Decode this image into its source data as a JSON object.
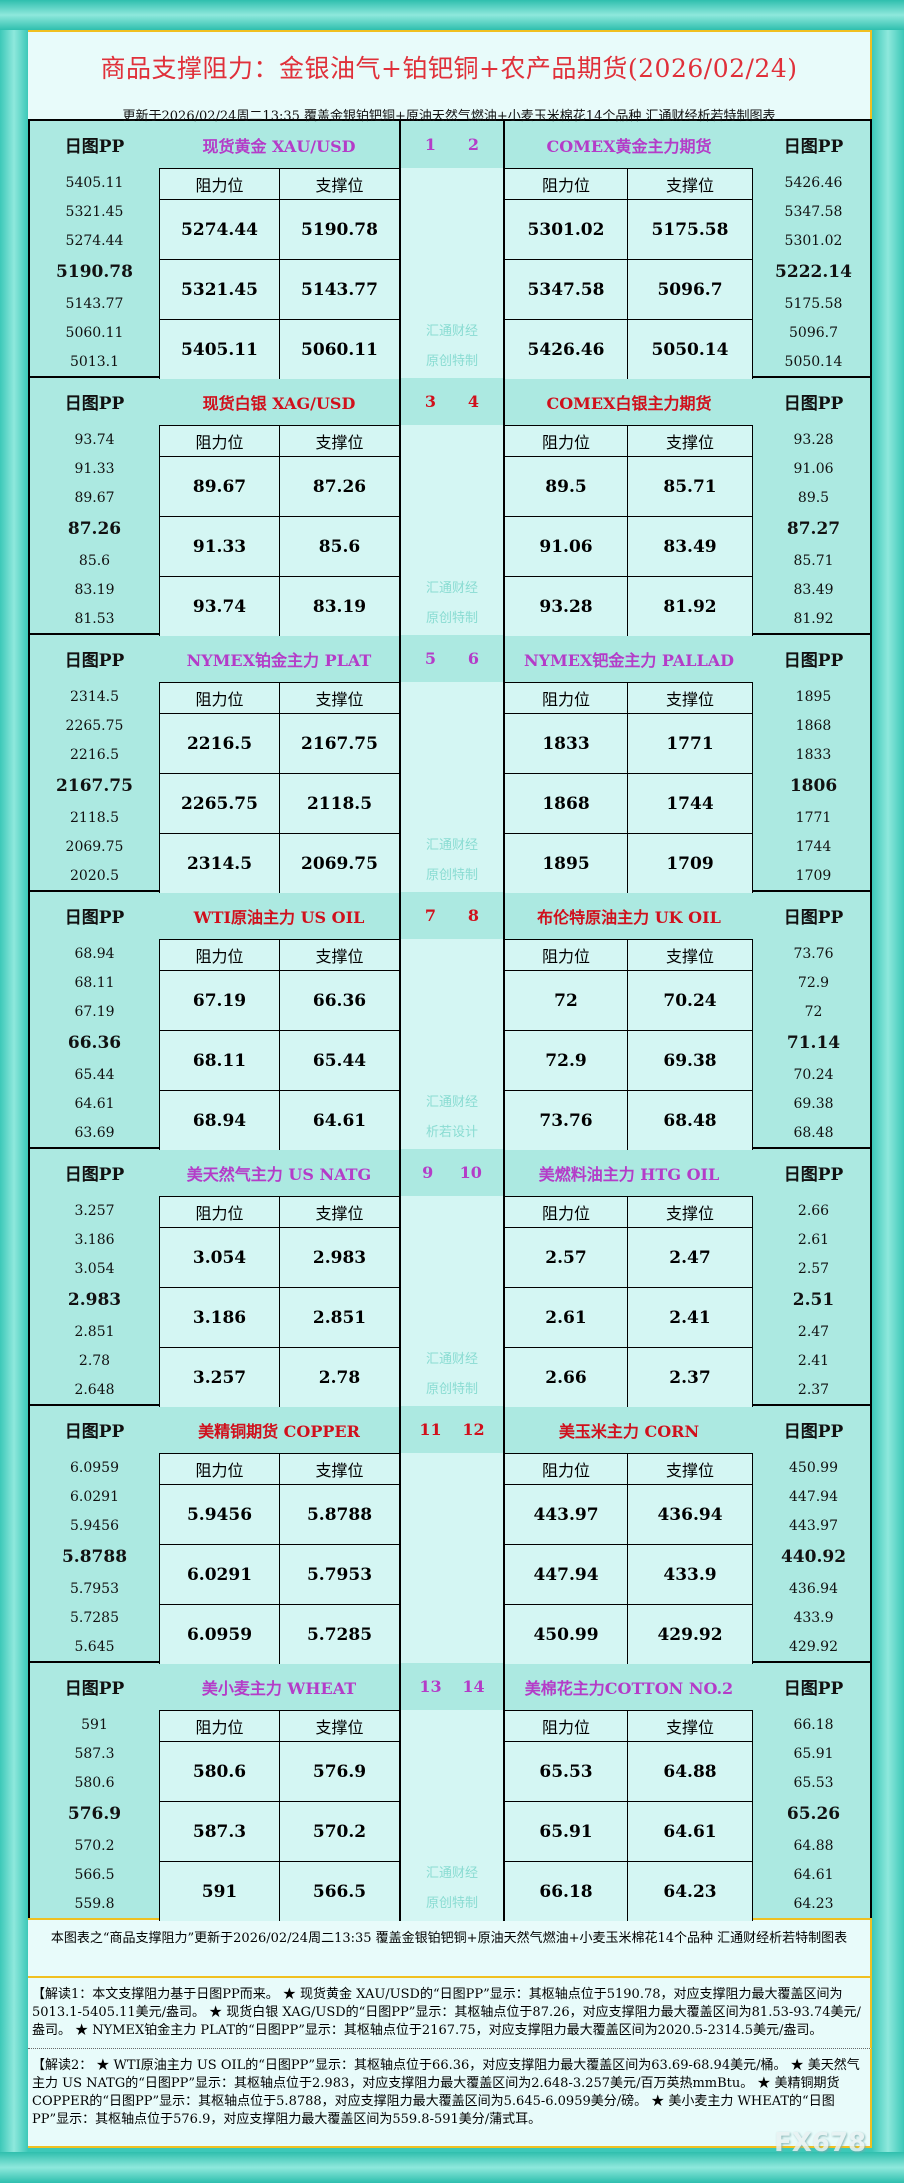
{
  "header": {
    "title": "商品支撑阻力：金银油气+铂钯铜+农产品期货(2026/02/24)",
    "subtitle": "更新于2026/02/24周二13:35  覆盖金银铂钯铜+原油天然气燃油+小麦玉米棉花14个品种  汇通财经析若特制图表"
  },
  "labels": {
    "pp": "日图PP",
    "resistance": "阻力位",
    "support": "支撑位"
  },
  "colors": {
    "purple": "#b43cc8",
    "red": "#d0101c"
  },
  "blocks": [
    {
      "nums": [
        "1",
        "2"
      ],
      "color": "purple",
      "watermark": [
        "汇通财经",
        "原创特制"
      ],
      "left": {
        "name": "现货黄金 XAU/USD",
        "pp": [
          "5405.11",
          "5321.45",
          "5274.44",
          "5190.78",
          "5143.77",
          "5060.11",
          "5013.1"
        ],
        "rows": [
          [
            "5274.44",
            "5190.78"
          ],
          [
            "5321.45",
            "5143.77"
          ],
          [
            "5405.11",
            "5060.11"
          ]
        ]
      },
      "right": {
        "name": "COMEX黄金主力期货",
        "pp": [
          "5426.46",
          "5347.58",
          "5301.02",
          "5222.14",
          "5175.58",
          "5096.7",
          "5050.14"
        ],
        "rows": [
          [
            "5301.02",
            "5175.58"
          ],
          [
            "5347.58",
            "5096.7"
          ],
          [
            "5426.46",
            "5050.14"
          ]
        ]
      }
    },
    {
      "nums": [
        "3",
        "4"
      ],
      "color": "red",
      "watermark": [
        "汇通财经",
        "原创特制"
      ],
      "left": {
        "name": "现货白银 XAG/USD",
        "pp": [
          "93.74",
          "91.33",
          "89.67",
          "87.26",
          "85.6",
          "83.19",
          "81.53"
        ],
        "rows": [
          [
            "89.67",
            "87.26"
          ],
          [
            "91.33",
            "85.6"
          ],
          [
            "93.74",
            "83.19"
          ]
        ]
      },
      "right": {
        "name": "COMEX白银主力期货",
        "pp": [
          "93.28",
          "91.06",
          "89.5",
          "87.27",
          "85.71",
          "83.49",
          "81.92"
        ],
        "rows": [
          [
            "89.5",
            "85.71"
          ],
          [
            "91.06",
            "83.49"
          ],
          [
            "93.28",
            "81.92"
          ]
        ]
      }
    },
    {
      "nums": [
        "5",
        "6"
      ],
      "color": "purple",
      "watermark": [
        "汇通财经",
        "原创特制"
      ],
      "left": {
        "name": "NYMEX铂金主力 PLAT",
        "pp": [
          "2314.5",
          "2265.75",
          "2216.5",
          "2167.75",
          "2118.5",
          "2069.75",
          "2020.5"
        ],
        "rows": [
          [
            "2216.5",
            "2167.75"
          ],
          [
            "2265.75",
            "2118.5"
          ],
          [
            "2314.5",
            "2069.75"
          ]
        ]
      },
      "right": {
        "name": "NYMEX钯金主力 PALLAD",
        "pp": [
          "1895",
          "1868",
          "1833",
          "1806",
          "1771",
          "1744",
          "1709"
        ],
        "rows": [
          [
            "1833",
            "1771"
          ],
          [
            "1868",
            "1744"
          ],
          [
            "1895",
            "1709"
          ]
        ]
      }
    },
    {
      "nums": [
        "7",
        "8"
      ],
      "color": "red",
      "watermark": [
        "汇通财经",
        "析若设计"
      ],
      "left": {
        "name": "WTI原油主力 US OIL",
        "pp": [
          "68.94",
          "68.11",
          "67.19",
          "66.36",
          "65.44",
          "64.61",
          "63.69"
        ],
        "rows": [
          [
            "67.19",
            "66.36"
          ],
          [
            "68.11",
            "65.44"
          ],
          [
            "68.94",
            "64.61"
          ]
        ]
      },
      "right": {
        "name": "布伦特原油主力 UK OIL",
        "pp": [
          "73.76",
          "72.9",
          "72",
          "71.14",
          "70.24",
          "69.38",
          "68.48"
        ],
        "rows": [
          [
            "72",
            "70.24"
          ],
          [
            "72.9",
            "69.38"
          ],
          [
            "73.76",
            "68.48"
          ]
        ]
      }
    },
    {
      "nums": [
        "9",
        "10"
      ],
      "color": "purple",
      "watermark": [
        "汇通财经",
        "原创特制"
      ],
      "left": {
        "name": "美天然气主力 US NATG",
        "pp": [
          "3.257",
          "3.186",
          "3.054",
          "2.983",
          "2.851",
          "2.78",
          "2.648"
        ],
        "rows": [
          [
            "3.054",
            "2.983"
          ],
          [
            "3.186",
            "2.851"
          ],
          [
            "3.257",
            "2.78"
          ]
        ]
      },
      "right": {
        "name": "美燃料油主力 HTG OIL",
        "pp": [
          "2.66",
          "2.61",
          "2.57",
          "2.51",
          "2.47",
          "2.41",
          "2.37"
        ],
        "rows": [
          [
            "2.57",
            "2.47"
          ],
          [
            "2.61",
            "2.41"
          ],
          [
            "2.66",
            "2.37"
          ]
        ]
      }
    },
    {
      "nums": [
        "11",
        "12"
      ],
      "color": "red",
      "watermark": [
        "",
        ""
      ],
      "left": {
        "name": "美精铜期货 COPPER",
        "pp": [
          "6.0959",
          "6.0291",
          "5.9456",
          "5.8788",
          "5.7953",
          "5.7285",
          "5.645"
        ],
        "rows": [
          [
            "5.9456",
            "5.8788"
          ],
          [
            "6.0291",
            "5.7953"
          ],
          [
            "6.0959",
            "5.7285"
          ]
        ]
      },
      "right": {
        "name": "美玉米主力 CORN",
        "pp": [
          "450.99",
          "447.94",
          "443.97",
          "440.92",
          "436.94",
          "433.9",
          "429.92"
        ],
        "rows": [
          [
            "443.97",
            "436.94"
          ],
          [
            "447.94",
            "433.9"
          ],
          [
            "450.99",
            "429.92"
          ]
        ]
      }
    },
    {
      "nums": [
        "13",
        "14"
      ],
      "color": "purple",
      "watermark": [
        "汇通财经",
        "原创特制"
      ],
      "left": {
        "name": "美小麦主力 WHEAT",
        "pp": [
          "591",
          "587.3",
          "580.6",
          "576.9",
          "570.2",
          "566.5",
          "559.8"
        ],
        "rows": [
          [
            "580.6",
            "576.9"
          ],
          [
            "587.3",
            "570.2"
          ],
          [
            "591",
            "566.5"
          ]
        ]
      },
      "right": {
        "name": "美棉花主力COTTON NO.2",
        "pp": [
          "66.18",
          "65.91",
          "65.53",
          "65.26",
          "64.88",
          "64.61",
          "64.23"
        ],
        "rows": [
          [
            "65.53",
            "64.88"
          ],
          [
            "65.91",
            "64.61"
          ],
          [
            "66.18",
            "64.23"
          ]
        ]
      }
    }
  ],
  "footer": {
    "note": "本图表之“商品支撑阻力”更新于2026/02/24周二13:35 覆盖金银铂钯铜+原油天然气燃油+小麦玉米棉花14个品种 汇通财经析若特制图表",
    "interp1": "【解读1：本文支撑阻力基于日图PP而来。 ★ 现货黄金 XAU/USD的“日图PP”显示：其枢轴点位于5190.78，对应支撑阻力最大覆盖区间为5013.1-5405.11美元/盎司。 ★ 现货白银 XAG/USD的“日图PP”显示：其枢轴点位于87.26，对应支撑阻力最大覆盖区间为81.53-93.74美元/盎司。 ★ NYMEX铂金主力 PLAT的“日图PP”显示：其枢轴点位于2167.75，对应支撑阻力最大覆盖区间为2020.5-2314.5美元/盎司。",
    "interp2": "【解读2： ★ WTI原油主力 US OIL的“日图PP”显示：其枢轴点位于66.36，对应支撑阻力最大覆盖区间为63.69-68.94美元/桶。 ★ 美天然气主力 US NATG的“日图PP”显示：其枢轴点位于2.983，对应支撑阻力最大覆盖区间为2.648-3.257美元/百万英热mmBtu。 ★ 美精铜期货 COPPER的“日图PP”显示：其枢轴点位于5.8788，对应支撑阻力最大覆盖区间为5.645-6.0959美分/磅。 ★ 美小麦主力 WHEAT的“日图PP”显示：其枢轴点位于576.9，对应支撑阻力最大覆盖区间为559.8-591美分/蒲式耳。"
  },
  "logo": "FX678"
}
